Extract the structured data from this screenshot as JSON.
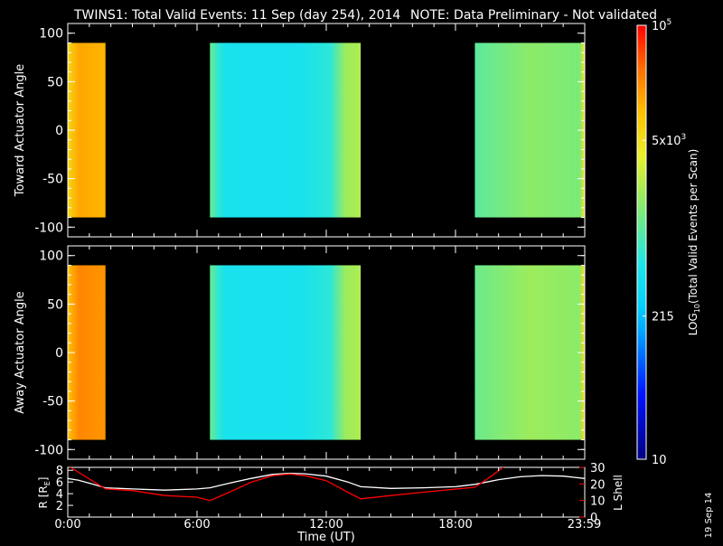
{
  "header": {
    "title": "TWINS1: Total Valid Events: 11 Sep (day 254), 2014",
    "note": "NOTE: Data Preliminary - Not validated"
  },
  "colors": {
    "background": "#000000",
    "note": "#ff0000",
    "lshell_line": "#ff0000",
    "radius_line": "#ffffff"
  },
  "footer": {
    "date_stamp": "19 Sep 14"
  },
  "chart_data": [
    {
      "type": "heatmap",
      "id": "toward",
      "ylabel": "Toward Actuator Angle",
      "ylim": [
        -110,
        110
      ],
      "yticks": [
        100,
        50,
        0,
        -50,
        -100
      ],
      "xlim": [
        0,
        24
      ],
      "angle_range": [
        -90,
        90
      ],
      "blocks": [
        {
          "start_h": 0.0,
          "end_h": 1.75,
          "colormap_level": 0.83
        },
        {
          "start_h": 6.6,
          "end_h": 13.6,
          "colormap_level": 0.43
        },
        {
          "start_h": 18.9,
          "end_h": 24.0,
          "colormap_level": 0.55
        }
      ]
    },
    {
      "type": "heatmap",
      "id": "away",
      "ylabel": "Away Actuator Angle",
      "ylim": [
        -110,
        110
      ],
      "yticks": [
        100,
        50,
        0,
        -50,
        -100
      ],
      "xlim": [
        0,
        24
      ],
      "angle_range": [
        -90,
        90
      ],
      "blocks": [
        {
          "start_h": 0.0,
          "end_h": 1.75,
          "colormap_level": 0.87
        },
        {
          "start_h": 6.6,
          "end_h": 13.6,
          "colormap_level": 0.43
        },
        {
          "start_h": 18.9,
          "end_h": 24.0,
          "colormap_level": 0.57
        }
      ]
    },
    {
      "type": "line",
      "id": "orbit",
      "xlabel": "Time (UT)",
      "xticks": [
        "0:00",
        "6:00",
        "12:00",
        "18:00",
        "23:59"
      ],
      "xtick_hours": [
        0,
        6,
        12,
        18,
        23.98
      ],
      "ylabel_left": "R [R",
      "ylabel_left_sub": "E",
      "ylabel_left_tail": "]",
      "yticks_left": [
        "8",
        "6",
        "4",
        "2"
      ],
      "ylim_left": [
        0,
        8.5
      ],
      "ylabel_right": "L Shell",
      "yticks_right": [
        "30",
        "20",
        "10",
        "0"
      ],
      "ylim_right": [
        0,
        30
      ],
      "series": [
        {
          "color": "#ffffff",
          "axis": "left",
          "x": [
            0,
            0.5,
            1,
            1.75,
            3,
            4.5,
            6,
            6.6,
            7.5,
            8.5,
            9.5,
            10.3,
            11,
            12,
            13,
            13.6,
            15,
            16.5,
            18,
            18.9,
            20,
            21,
            22,
            23,
            24
          ],
          "y": [
            6.6,
            6.3,
            5.8,
            5.0,
            4.8,
            4.6,
            4.8,
            5.0,
            5.8,
            6.6,
            7.3,
            7.5,
            7.4,
            7.0,
            6.0,
            5.2,
            4.9,
            5.0,
            5.2,
            5.6,
            6.4,
            6.9,
            7.1,
            7.0,
            6.6
          ]
        },
        {
          "color": "#ff0000",
          "axis": "right",
          "x": [
            0,
            0.5,
            1.75,
            3,
            4.5,
            6,
            6.6,
            7.5,
            8.5,
            9.5,
            10.3,
            11,
            12,
            13,
            13.6,
            15,
            16.5,
            18.9,
            19.7,
            20.3
          ],
          "y": [
            31,
            27,
            17,
            16,
            13,
            12,
            10,
            15,
            21,
            25,
            26,
            25,
            22,
            15,
            11,
            13,
            15,
            18,
            25,
            31
          ]
        }
      ]
    },
    {
      "type": "heatmap",
      "id": "colorbar",
      "ylabel": "LOG",
      "ylabel_sub": "10",
      "ylabel_tail": "(Total Valid Events per Scan)",
      "tick_labels": [
        {
          "text": "10",
          "sup": "5",
          "level": 1.0
        },
        {
          "text": "5x10",
          "sup": "3",
          "level": 0.735
        },
        {
          "text": "215",
          "sup": "",
          "level": 0.33
        },
        {
          "text": "10",
          "sup": "",
          "level": 0.0
        }
      ]
    }
  ]
}
